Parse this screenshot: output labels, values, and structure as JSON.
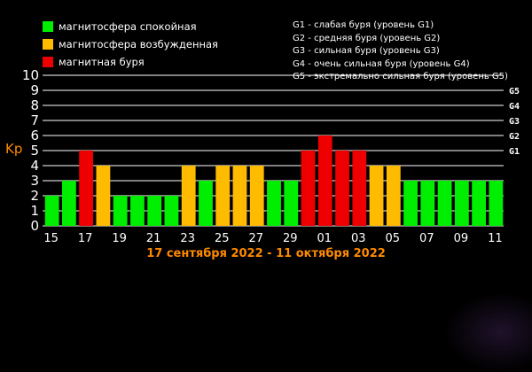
{
  "legend": {
    "items": [
      {
        "label": "магнитосфера спокойная",
        "color": "#00ee00"
      },
      {
        "label": "магнитосфера возбужденная",
        "color": "#ffbb00"
      },
      {
        "label": "магнитная буря",
        "color": "#ee0000"
      }
    ],
    "storm_levels": [
      "G1 - слабая буря (уровень G1)",
      "G2 - средняя буря (уровень G2)",
      "G3 - сильная буря (уровень G3)",
      "G4 - очень сильная буря (уровень G4)",
      "G5 - экстремально сильная буря (уровень G5)"
    ]
  },
  "chart_data": {
    "type": "bar",
    "ylabel": "Kp",
    "caption": "17 сентября 2022 - 11 октября 2022",
    "ylim": [
      0,
      10
    ],
    "yticks": [
      "0",
      "1",
      "2",
      "3",
      "4",
      "5",
      "6",
      "7",
      "8",
      "9",
      "10"
    ],
    "right_ticks": [
      {
        "label": "G1",
        "value": 5
      },
      {
        "label": "G2",
        "value": 6
      },
      {
        "label": "G3",
        "value": 7
      },
      {
        "label": "G4",
        "value": 8
      },
      {
        "label": "G5",
        "value": 9
      }
    ],
    "xtick_labels": [
      "15",
      "17",
      "19",
      "21",
      "23",
      "25",
      "27",
      "29",
      "01",
      "03",
      "05",
      "07",
      "09",
      "11"
    ],
    "grid": true,
    "values": [
      2,
      3,
      5,
      4,
      2,
      2,
      2,
      2,
      4,
      3,
      4,
      4,
      4,
      3,
      3,
      5,
      6,
      5,
      5,
      4,
      4,
      3,
      3,
      3,
      3,
      3,
      3
    ],
    "color_by_level": {
      "quiet": "#00ee00",
      "active": "#ffbb00",
      "storm": "#ee0000"
    }
  }
}
